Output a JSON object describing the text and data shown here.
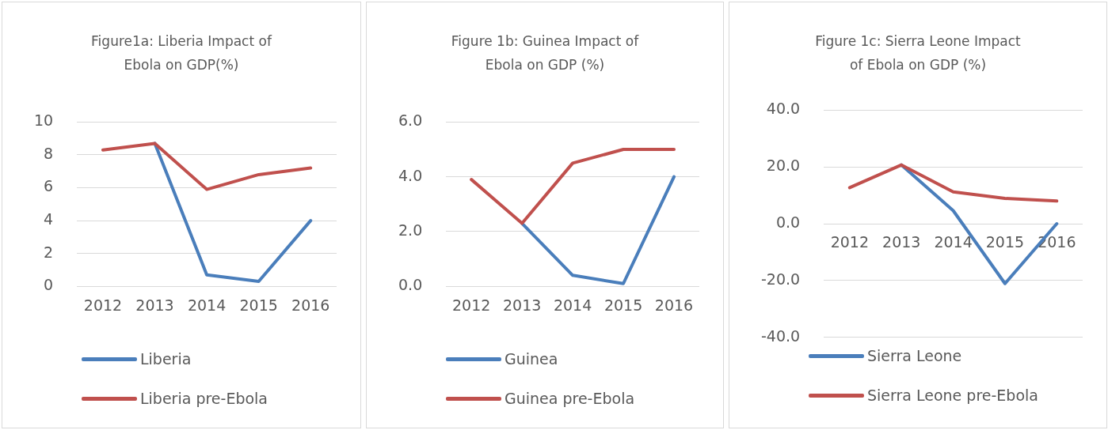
{
  "chart_data": [
    {
      "type": "line",
      "title": "Figure1a: Liberia Impact of Ebola on GDP(%)",
      "categories": [
        "2012",
        "2013",
        "2014",
        "2015",
        "2016"
      ],
      "series": [
        {
          "name": "Liberia",
          "color": "#4a7ebb",
          "values": [
            null,
            8.7,
            0.7,
            0.3,
            4.0
          ]
        },
        {
          "name": "Liberia pre-Ebola",
          "color": "#c0504d",
          "values": [
            8.3,
            8.7,
            5.9,
            6.8,
            7.2
          ]
        }
      ],
      "ylim": [
        0,
        10
      ],
      "yticks": [
        0,
        2,
        4,
        6,
        8,
        10
      ],
      "grid": "y",
      "legend": "bottom"
    },
    {
      "type": "line",
      "title": "Figure 1b: Guinea Impact of Ebola on GDP (%)",
      "categories": [
        "2012",
        "2013",
        "2014",
        "2015",
        "2016"
      ],
      "series": [
        {
          "name": "Guinea",
          "color": "#4a7ebb",
          "values": [
            null,
            2.3,
            0.4,
            0.1,
            4.0
          ]
        },
        {
          "name": "Guinea pre-Ebola",
          "color": "#c0504d",
          "values": [
            3.9,
            2.3,
            4.5,
            5.0,
            5.0
          ]
        }
      ],
      "ylim": [
        0,
        6
      ],
      "yticks": [
        {
          "value": 0,
          "label": "0.0"
        },
        {
          "value": 2,
          "label": "2.0"
        },
        {
          "value": 4,
          "label": "4.0"
        },
        {
          "value": 6,
          "label": "6.0"
        }
      ],
      "grid": "y",
      "legend": "bottom"
    },
    {
      "type": "line",
      "title": "Figure 1c: Sierra Leone Impact of Ebola on GDP (%)",
      "categories": [
        "2012",
        "2013",
        "2014",
        "2015",
        "2016"
      ],
      "series": [
        {
          "name": "Sierra Leone",
          "color": "#4a7ebb",
          "values": [
            null,
            20.7,
            4.6,
            -21.1,
            0.0
          ]
        },
        {
          "name": "Sierra Leone pre-Ebola",
          "color": "#c0504d",
          "values": [
            12.7,
            20.7,
            11.2,
            8.9,
            8.0
          ]
        }
      ],
      "ylim": [
        -40,
        40
      ],
      "yticks": [
        {
          "value": -40,
          "label": "-40.0"
        },
        {
          "value": -20,
          "label": "-20.0"
        },
        {
          "value": 0,
          "label": "0.0"
        },
        {
          "value": 20,
          "label": "20.0"
        },
        {
          "value": 40,
          "label": "40.0"
        }
      ],
      "grid": "y",
      "legend": "bottom"
    }
  ]
}
